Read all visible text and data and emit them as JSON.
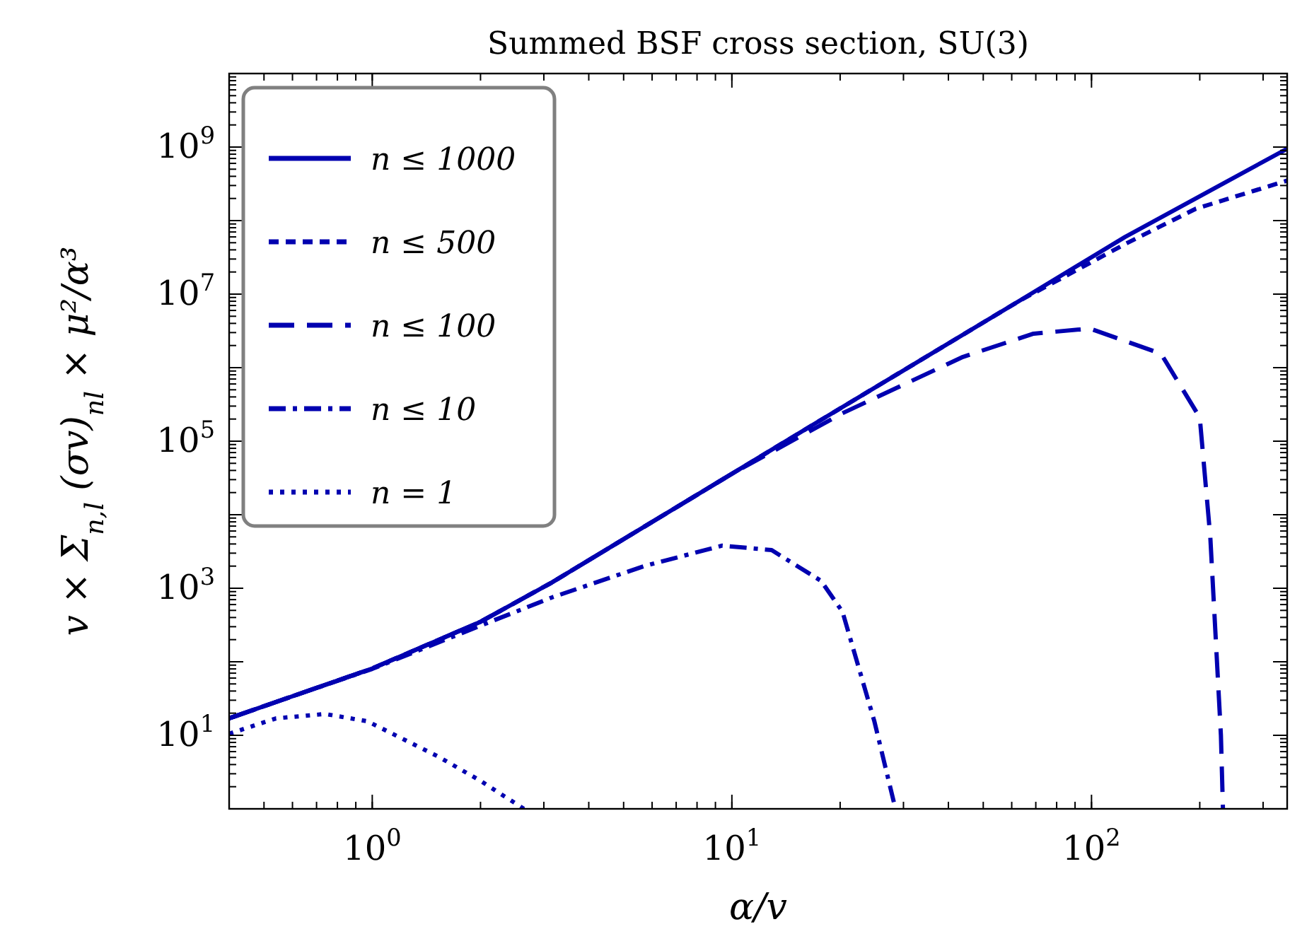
{
  "chart_data": {
    "type": "line",
    "title": "Summed BSF cross section, SU(3)",
    "xlabel": "α/v",
    "ylabel": "v × Σ$_{n,l}$ (σv)$_{nl}$ × μ²/α³",
    "log": "xy",
    "xlim": [
      0.4,
      350
    ],
    "ylim": [
      1,
      10000000000
    ],
    "xticks": [
      {
        "value": 1,
        "label": "10$^{0}$"
      },
      {
        "value": 10,
        "label": "10$^{1}$"
      },
      {
        "value": 100,
        "label": "10$^{2}$"
      }
    ],
    "yticks": [
      {
        "value": 10,
        "label": "10$^{1}$"
      },
      {
        "value": 100,
        "label": null
      },
      {
        "value": 1000,
        "label": "10$^{3}$"
      },
      {
        "value": 10000,
        "label": null
      },
      {
        "value": 100000,
        "label": "10$^{5}$"
      },
      {
        "value": 1000000,
        "label": null
      },
      {
        "value": 10000000,
        "label": "10$^{7}$"
      },
      {
        "value": 100000000,
        "label": null
      },
      {
        "value": 1000000000,
        "label": "10$^{9}$"
      }
    ],
    "legend": "top left",
    "grid": false,
    "marker": "none",
    "series": [
      {
        "name": "n ≤ 1000",
        "color": "#0000b0",
        "line_style": "solid",
        "x": [
          0.4,
          0.6,
          1,
          2,
          3.16,
          10,
          16.9,
          63,
          124,
          350
        ],
        "values": [
          17,
          34,
          81,
          350,
          1200,
          36000,
          170000,
          8100000,
          60000000,
          950000000
        ]
      },
      {
        "name": "n ≤ 500",
        "color": "#0000b0",
        "line_style": "dashed",
        "x": [
          0.4,
          0.6,
          1,
          2,
          3.16,
          10,
          16.9,
          63,
          124,
          195,
          350
        ],
        "values": [
          17,
          34,
          81,
          350,
          1200,
          36000,
          170000,
          8100000,
          48000000,
          145000000,
          350000000
        ]
      },
      {
        "name": "n ≤ 100",
        "color": "#0000b0",
        "line_style": "longdashed",
        "x": [
          0.4,
          0.6,
          1,
          2,
          3.16,
          10,
          20.3,
          43.9,
          69,
          99,
          156,
          200,
          214,
          229,
          232
        ],
        "values": [
          17,
          34,
          81,
          350,
          1200,
          36000,
          240000,
          1400000,
          2900000,
          3400000,
          1550000,
          210000,
          4900,
          10,
          1
        ]
      },
      {
        "name": "n ≤ 10",
        "color": "#0000b0",
        "line_style": "dashdot",
        "x": [
          0.4,
          0.6,
          1,
          2,
          3.16,
          5.7,
          9.4,
          12.9,
          17.7,
          20.3,
          24.9,
          28.5
        ],
        "values": [
          17,
          34,
          80,
          310,
          750,
          2000,
          3800,
          3300,
          1260,
          480,
          15.5,
          1
        ]
      },
      {
        "name": "n = 1",
        "color": "#0000b0",
        "line_style": "dotted",
        "x": [
          0.4,
          0.54,
          0.74,
          0.97,
          1.53,
          2.0,
          2.64
        ],
        "values": [
          10.5,
          17,
          19.5,
          15.5,
          5.1,
          2.4,
          1
        ]
      }
    ]
  }
}
